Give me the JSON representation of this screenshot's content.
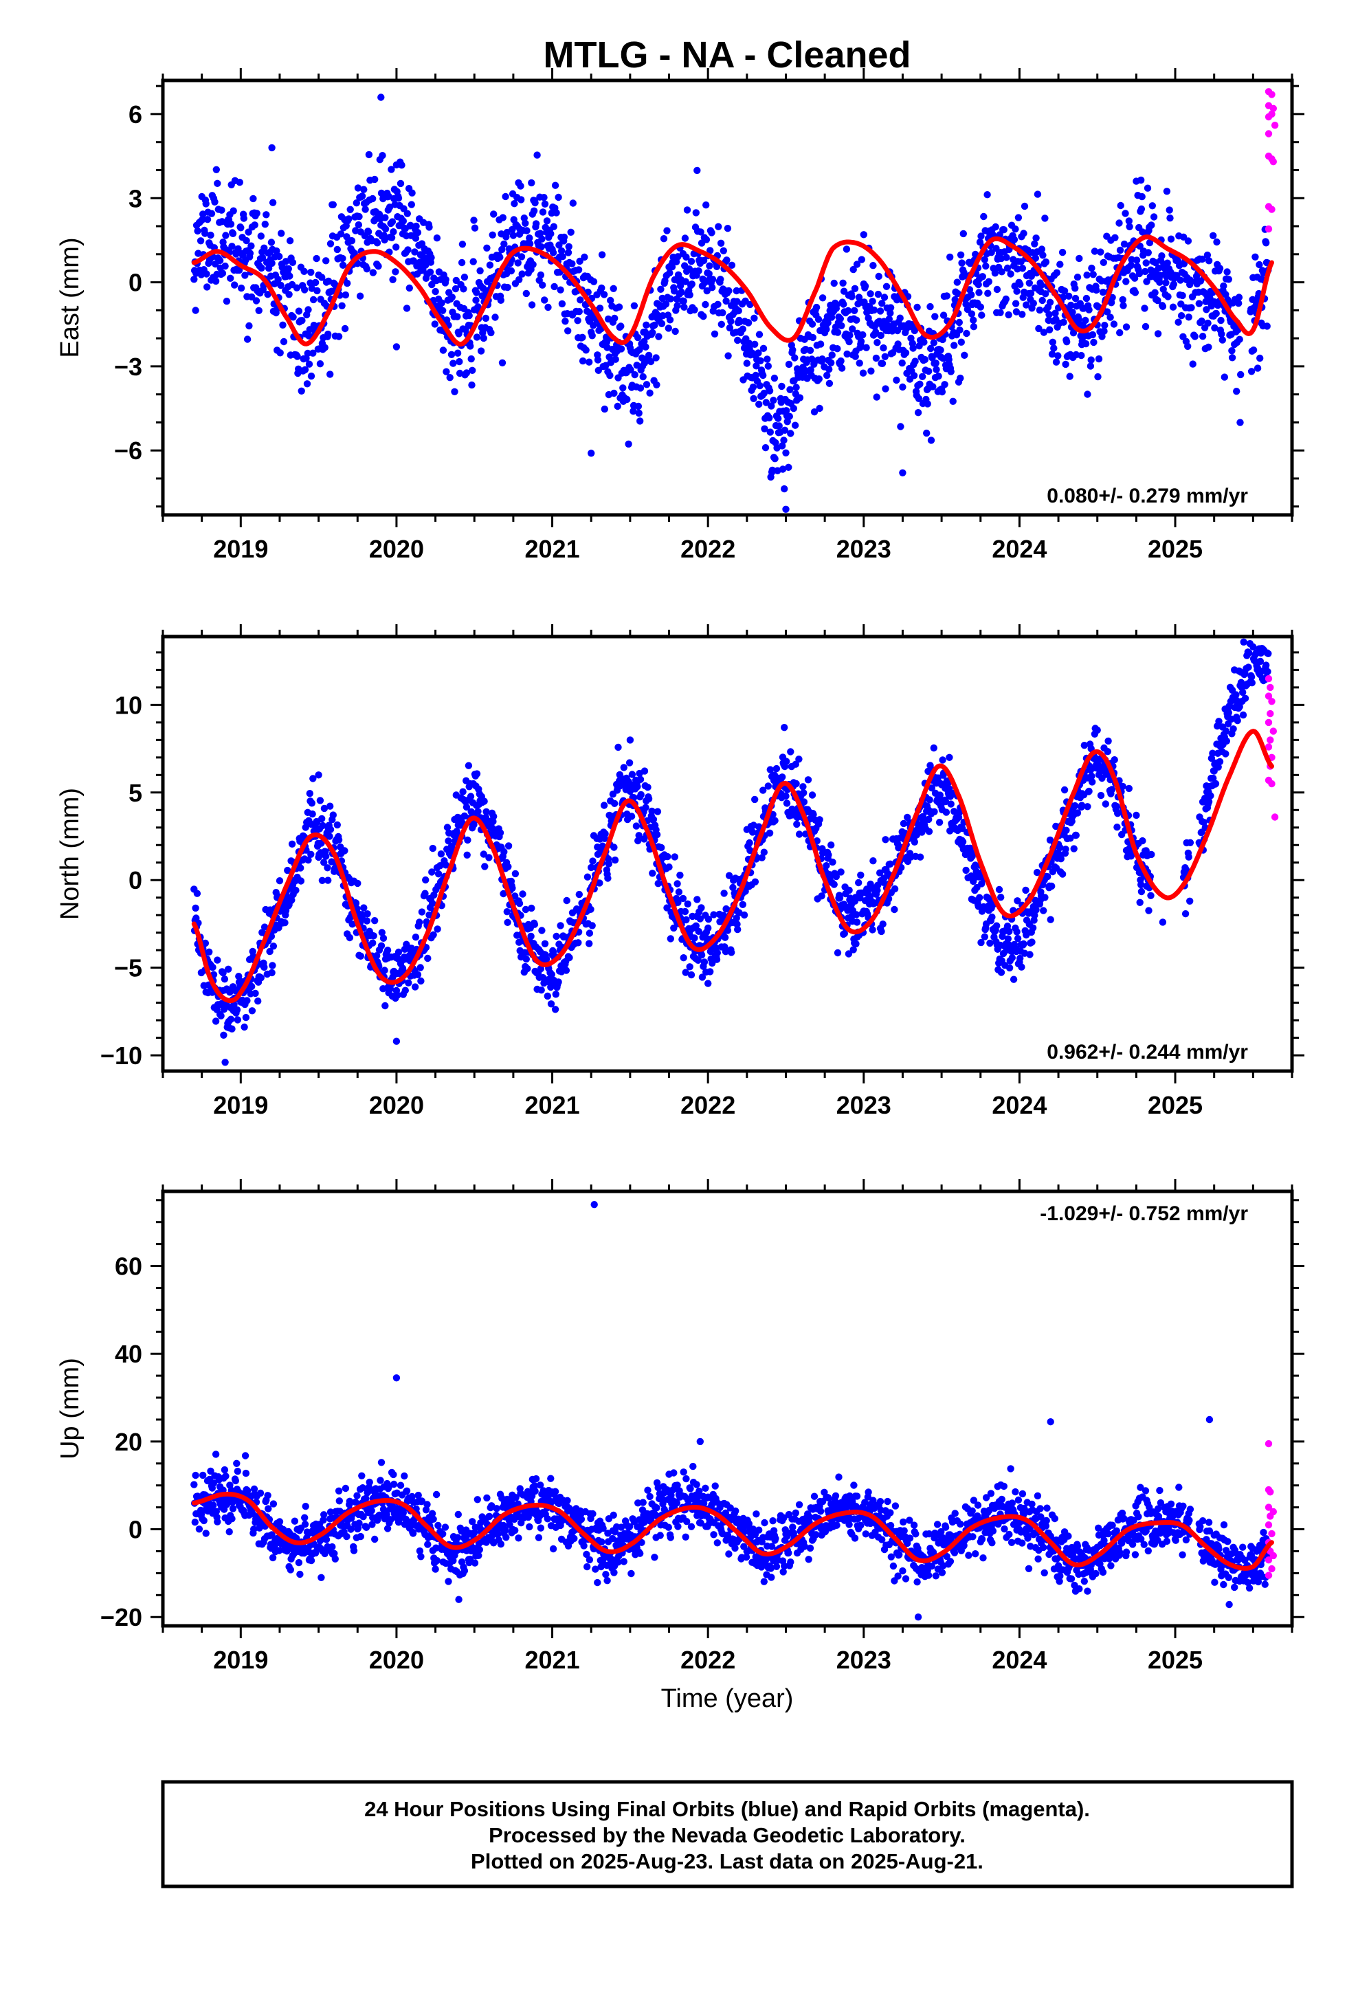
{
  "title": "MTLG  - NA - Cleaned",
  "xlabel": "Time (year)",
  "footer": [
    "24 Hour Positions Using Final Orbits (blue) and Rapid Orbits (magenta).",
    "Processed by the Nevada Geodetic Laboratory.",
    "Plotted on 2025-Aug-23. Last data on 2025-Aug-21."
  ],
  "colors": {
    "final": "#0000ff",
    "rapid": "#ff00ff",
    "model": "#ff0000"
  },
  "chart_data": [
    {
      "type": "scatter",
      "ylabel": "East (mm)",
      "rate_text": "0.080+/- 0.279 mm/yr",
      "xlim": [
        2018.5,
        2025.75
      ],
      "ylim": [
        -8.3,
        7.2
      ],
      "x_ticks": [
        2019,
        2020,
        2021,
        2022,
        2023,
        2024,
        2025
      ],
      "x_tick_labels": [
        "2019",
        "2020",
        "2021",
        "2022",
        "2023",
        "2024",
        "2025"
      ],
      "y_ticks": [
        6,
        3,
        0,
        -3,
        -6
      ],
      "y_tick_labels": [
        "6",
        "3",
        "0",
        "−3",
        "−6"
      ],
      "y_minor_step": 1,
      "rate_position": "bottom-right",
      "model": {
        "name": "seasonal fit",
        "x": [
          2018.7,
          2018.85,
          2019.0,
          2019.15,
          2019.3,
          2019.42,
          2019.55,
          2019.7,
          2019.85,
          2020.0,
          2020.15,
          2020.3,
          2020.42,
          2020.55,
          2020.7,
          2020.8,
          2020.95,
          2021.1,
          2021.25,
          2021.4,
          2021.5,
          2021.65,
          2021.8,
          2021.95,
          2022.1,
          2022.25,
          2022.4,
          2022.55,
          2022.7,
          2022.8,
          2022.95,
          2023.1,
          2023.25,
          2023.4,
          2023.55,
          2023.7,
          2023.82,
          2023.95,
          2024.1,
          2024.25,
          2024.38,
          2024.5,
          2024.65,
          2024.8,
          2024.95,
          2025.1,
          2025.25,
          2025.4,
          2025.5,
          2025.62
        ],
        "y": [
          0.7,
          1.1,
          0.6,
          0.1,
          -1.3,
          -2.2,
          -1.2,
          0.6,
          1.1,
          0.7,
          -0.2,
          -1.5,
          -2.2,
          -1.0,
          0.7,
          1.2,
          1.0,
          0.3,
          -0.8,
          -2.0,
          -1.9,
          0.2,
          1.3,
          1.1,
          0.6,
          -0.3,
          -1.6,
          -2.0,
          -0.2,
          1.2,
          1.4,
          0.8,
          -0.5,
          -1.9,
          -1.5,
          0.4,
          1.5,
          1.3,
          0.6,
          -0.6,
          -1.7,
          -1.3,
          0.6,
          1.6,
          1.2,
          0.7,
          -0.2,
          -1.4,
          -1.7,
          0.7
        ]
      },
      "series": [
        {
          "name": "final",
          "generator": {
            "seed": 11,
            "x_start": 2018.7,
            "x_end": 2025.6,
            "per_year": 300,
            "gaps": [
              [
                2025.42,
                2025.48
              ]
            ],
            "noise": 1.05,
            "offset_x": [
              2018.7,
              2019.5,
              2020.0,
              2020.5,
              2021.0,
              2021.4,
              2021.6,
              2022.0,
              2022.3,
              2022.45,
              2022.6,
              2022.8,
              2023.0,
              2023.2,
              2023.4,
              2023.6,
              2024.0,
              2024.5,
              2025.0,
              2025.6
            ],
            "offset_y": [
              0.6,
              0.3,
              1.5,
              0.2,
              0.3,
              -0.4,
              -1.8,
              -0.2,
              -2.0,
              -3.5,
              -1.2,
              -2.8,
              -2.8,
              -1.6,
              -1.0,
              -0.2,
              -0.7,
              0.3,
              -1.0,
              0.4
            ]
          },
          "extra_points": [
            [
              2019.9,
              6.6
            ],
            [
              2021.25,
              -6.1
            ],
            [
              2022.5,
              -8.1
            ],
            [
              2023.0,
              1.7
            ],
            [
              2023.25,
              -6.8
            ],
            [
              2020.0,
              -2.3
            ],
            [
              2019.2,
              4.8
            ]
          ]
        },
        {
          "name": "rapid",
          "points": [
            [
              2025.6,
              6.8
            ],
            [
              2025.6,
              6.3
            ],
            [
              2025.6,
              5.9
            ],
            [
              2025.6,
              5.3
            ],
            [
              2025.6,
              4.5
            ],
            [
              2025.6,
              2.7
            ],
            [
              2025.6,
              1.9
            ],
            [
              2025.62,
              6.7
            ],
            [
              2025.62,
              6.0
            ],
            [
              2025.62,
              4.4
            ],
            [
              2025.62,
              2.6
            ],
            [
              2025.63,
              6.2
            ],
            [
              2025.63,
              4.3
            ],
            [
              2025.64,
              5.6
            ]
          ]
        }
      ]
    },
    {
      "type": "scatter",
      "ylabel": "North (mm)",
      "rate_text": "0.962+/- 0.244 mm/yr",
      "xlim": [
        2018.5,
        2025.75
      ],
      "ylim": [
        -10.9,
        13.9
      ],
      "x_ticks": [
        2019,
        2020,
        2021,
        2022,
        2023,
        2024,
        2025
      ],
      "x_tick_labels": [
        "2019",
        "2020",
        "2021",
        "2022",
        "2023",
        "2024",
        "2025"
      ],
      "y_ticks": [
        10,
        5,
        0,
        -5,
        -10
      ],
      "y_tick_labels": [
        "10",
        "5",
        "0",
        "−5",
        "−10"
      ],
      "y_minor_step": 1,
      "rate_position": "bottom-right",
      "model": {
        "name": "seasonal fit",
        "x": [
          2018.7,
          2018.8,
          2018.9,
          2019.0,
          2019.15,
          2019.3,
          2019.45,
          2019.6,
          2019.75,
          2019.9,
          2020.05,
          2020.2,
          2020.35,
          2020.48,
          2020.6,
          2020.75,
          2020.9,
          2021.05,
          2021.2,
          2021.35,
          2021.48,
          2021.6,
          2021.75,
          2021.9,
          2022.05,
          2022.2,
          2022.35,
          2022.48,
          2022.6,
          2022.75,
          2022.9,
          2023.05,
          2023.2,
          2023.35,
          2023.48,
          2023.6,
          2023.75,
          2023.9,
          2024.05,
          2024.2,
          2024.35,
          2024.48,
          2024.6,
          2024.75,
          2024.92,
          2025.05,
          2025.2,
          2025.35,
          2025.5,
          2025.62
        ],
        "y": [
          -2.5,
          -5.5,
          -6.8,
          -6.4,
          -3.5,
          -0.2,
          2.5,
          1.5,
          -2.5,
          -5.5,
          -5.5,
          -3.0,
          0.8,
          3.5,
          2.2,
          -1.5,
          -4.6,
          -4.3,
          -1.8,
          1.8,
          4.5,
          3.0,
          -0.8,
          -3.8,
          -3.3,
          -0.8,
          2.8,
          5.5,
          4.0,
          0.0,
          -2.8,
          -2.3,
          0.5,
          4.0,
          6.5,
          5.0,
          1.0,
          -1.9,
          -1.3,
          1.5,
          5.0,
          7.3,
          6.0,
          1.5,
          -0.9,
          -0.3,
          2.5,
          6.0,
          8.5,
          6.5
        ]
      },
      "series": [
        {
          "name": "final",
          "generator": {
            "seed": 23,
            "x_start": 2018.7,
            "x_end": 2025.6,
            "per_year": 300,
            "gaps": [
              [
                2024.85,
                2025.05
              ],
              [
                2025.1,
                2025.15
              ]
            ],
            "noise": 1.0,
            "offset_x": [
              2018.7,
              2019.0,
              2019.5,
              2020.0,
              2020.5,
              2021.0,
              2021.5,
              2022.0,
              2022.5,
              2023.0,
              2023.5,
              2023.9,
              2024.5,
              2025.0,
              2025.25,
              2025.45,
              2025.6
            ],
            "offset_y": [
              0.0,
              -0.5,
              0.0,
              0.3,
              1.0,
              -0.5,
              0.8,
              0.0,
              0.2,
              1.0,
              -1.5,
              -2.0,
              -0.3,
              0.0,
              2.5,
              3.5,
              5.0
            ]
          },
          "extra_points": [
            [
              2018.9,
              -10.4
            ],
            [
              2020.0,
              -9.2
            ],
            [
              2019.5,
              6.0
            ],
            [
              2021.5,
              8.0
            ],
            [
              2023.55,
              7.0
            ],
            [
              2024.92,
              -2.4
            ],
            [
              2022.0,
              -5.9
            ]
          ]
        },
        {
          "name": "rapid",
          "points": [
            [
              2025.6,
              11.5
            ],
            [
              2025.6,
              10.5
            ],
            [
              2025.6,
              9.0
            ],
            [
              2025.6,
              7.6
            ],
            [
              2025.6,
              5.7
            ],
            [
              2025.61,
              11.0
            ],
            [
              2025.61,
              9.5
            ],
            [
              2025.61,
              8.0
            ],
            [
              2025.61,
              6.5
            ],
            [
              2025.62,
              10.2
            ],
            [
              2025.62,
              7.0
            ],
            [
              2025.62,
              5.5
            ],
            [
              2025.63,
              8.5
            ],
            [
              2025.64,
              3.6
            ]
          ]
        }
      ]
    },
    {
      "type": "scatter",
      "ylabel": "Up (mm)",
      "rate_text": "-1.029+/- 0.752 mm/yr",
      "xlim": [
        2018.5,
        2025.75
      ],
      "ylim": [
        -22,
        77
      ],
      "x_ticks": [
        2019,
        2020,
        2021,
        2022,
        2023,
        2024,
        2025
      ],
      "x_tick_labels": [
        "2019",
        "2020",
        "2021",
        "2022",
        "2023",
        "2024",
        "2025"
      ],
      "y_ticks": [
        60,
        40,
        20,
        0,
        -20
      ],
      "y_tick_labels": [
        "60",
        "40",
        "20",
        "0",
        "−20"
      ],
      "y_minor_step": 5,
      "rate_position": "top-right",
      "model": {
        "name": "seasonal fit",
        "x": [
          2018.7,
          2018.9,
          2019.05,
          2019.2,
          2019.35,
          2019.5,
          2019.7,
          2019.9,
          2020.05,
          2020.2,
          2020.35,
          2020.5,
          2020.7,
          2020.9,
          2021.05,
          2021.2,
          2021.35,
          2021.5,
          2021.7,
          2021.9,
          2022.05,
          2022.2,
          2022.35,
          2022.5,
          2022.7,
          2022.9,
          2023.05,
          2023.2,
          2023.35,
          2023.5,
          2023.7,
          2023.9,
          2024.05,
          2024.2,
          2024.35,
          2024.5,
          2024.7,
          2024.9,
          2025.05,
          2025.2,
          2025.35,
          2025.5,
          2025.62
        ],
        "y": [
          6.0,
          8.0,
          6.5,
          0.5,
          -3.0,
          -1.5,
          4.0,
          6.5,
          5.5,
          0.5,
          -4.0,
          -2.5,
          3.5,
          5.5,
          4.0,
          -1.0,
          -5.0,
          -3.5,
          2.5,
          5.0,
          3.5,
          -1.0,
          -5.5,
          -4.0,
          1.5,
          3.8,
          3.0,
          -2.0,
          -7.0,
          -5.5,
          0.5,
          2.8,
          2.0,
          -3.0,
          -8.0,
          -6.0,
          0.0,
          1.5,
          0.8,
          -4.0,
          -8.0,
          -8.5,
          -3.0
        ]
      },
      "series": [
        {
          "name": "final",
          "generator": {
            "seed": 37,
            "x_start": 2018.7,
            "x_end": 2025.6,
            "per_year": 300,
            "gaps": [
              [
                2025.1,
                2025.15
              ]
            ],
            "noise": 3.2,
            "offset_x": [
              2018.7,
              2019.5,
              2020.0,
              2021.0,
              2021.8,
              2022.0,
              2023.0,
              2024.0,
              2025.0,
              2025.6
            ],
            "offset_y": [
              0.5,
              -1.0,
              -0.5,
              0.0,
              2.0,
              0.5,
              0.5,
              0.0,
              0.0,
              0.0
            ]
          },
          "extra_points": [
            [
              2021.27,
              74.0
            ],
            [
              2020.0,
              34.5
            ],
            [
              2024.2,
              24.5
            ],
            [
              2025.22,
              25.0
            ],
            [
              2021.95,
              20.0
            ],
            [
              2023.35,
              -20.0
            ],
            [
              2020.4,
              -16.0
            ]
          ]
        },
        {
          "name": "rapid",
          "points": [
            [
              2025.6,
              19.5
            ],
            [
              2025.6,
              9.0
            ],
            [
              2025.6,
              5.0
            ],
            [
              2025.6,
              1.0
            ],
            [
              2025.6,
              -3.0
            ],
            [
              2025.6,
              -7.0
            ],
            [
              2025.6,
              -10.5
            ],
            [
              2025.61,
              8.5
            ],
            [
              2025.61,
              3.0
            ],
            [
              2025.61,
              -5.0
            ],
            [
              2025.62,
              -1.0
            ],
            [
              2025.62,
              -9.0
            ],
            [
              2025.63,
              4.0
            ],
            [
              2025.63,
              -6.0
            ]
          ]
        }
      ]
    }
  ]
}
